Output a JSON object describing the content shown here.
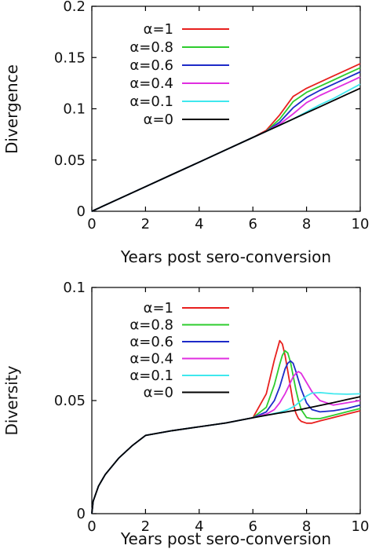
{
  "chart_data": [
    {
      "type": "line",
      "xlabel": "Years post sero-conversion",
      "ylabel": "Divergence",
      "xlim": [
        0,
        10
      ],
      "ylim": [
        0,
        0.2
      ],
      "xticks": [
        "0",
        "2",
        "4",
        "6",
        "8",
        "10"
      ],
      "yticks": [
        "0",
        "0.05",
        "0.1",
        "0.15",
        "0.2"
      ],
      "legend_position": "top-left",
      "grid": false,
      "x": [
        0,
        1,
        2,
        3,
        4,
        5,
        6,
        6.5,
        7,
        7.5,
        8,
        8.5,
        9,
        9.5,
        10
      ],
      "series": [
        {
          "name": "α=1",
          "color": "#e8201e",
          "values": [
            0,
            0.012,
            0.024,
            0.036,
            0.048,
            0.06,
            0.072,
            0.079,
            0.094,
            0.112,
            0.12,
            0.126,
            0.132,
            0.138,
            0.144
          ]
        },
        {
          "name": "α=0.8",
          "color": "#2ecc2e",
          "values": [
            0,
            0.012,
            0.024,
            0.036,
            0.048,
            0.06,
            0.072,
            0.078,
            0.09,
            0.107,
            0.116,
            0.122,
            0.128,
            0.134,
            0.14
          ]
        },
        {
          "name": "α=0.6",
          "color": "#1d2ac8",
          "values": [
            0,
            0.012,
            0.024,
            0.036,
            0.048,
            0.06,
            0.072,
            0.078,
            0.087,
            0.101,
            0.111,
            0.118,
            0.124,
            0.13,
            0.136
          ]
        },
        {
          "name": "α=0.4",
          "color": "#e02ee0",
          "values": [
            0,
            0.012,
            0.024,
            0.036,
            0.048,
            0.06,
            0.072,
            0.078,
            0.085,
            0.095,
            0.106,
            0.113,
            0.119,
            0.125,
            0.131
          ]
        },
        {
          "name": "α=0.1",
          "color": "#3fe8ee",
          "values": [
            0,
            0.012,
            0.024,
            0.036,
            0.048,
            0.06,
            0.072,
            0.078,
            0.084,
            0.09,
            0.097,
            0.104,
            0.11,
            0.117,
            0.124
          ]
        },
        {
          "name": "α=0",
          "color": "#000000",
          "values": [
            0,
            0.012,
            0.024,
            0.036,
            0.048,
            0.06,
            0.072,
            0.078,
            0.084,
            0.09,
            0.096,
            0.102,
            0.108,
            0.114,
            0.12
          ]
        }
      ]
    },
    {
      "type": "line",
      "xlabel": "Years post sero-conversion",
      "ylabel": "Diversity",
      "xlim": [
        0,
        10
      ],
      "ylim": [
        0,
        0.1
      ],
      "xticks": [
        "0",
        "2",
        "4",
        "6",
        "8",
        "10"
      ],
      "yticks": [
        "0",
        "0.05",
        "0.1"
      ],
      "legend_position": "top-left",
      "grid": false,
      "x": [
        0,
        0.05,
        0.25,
        0.5,
        1,
        1.5,
        2,
        3,
        4,
        5,
        6,
        6.5,
        6.8,
        7.0,
        7.1,
        7.2,
        7.3,
        7.4,
        7.5,
        7.6,
        7.7,
        7.8,
        8.0,
        8.2,
        8.5,
        9.0,
        9.5,
        10
      ],
      "series": [
        {
          "name": "α=1",
          "color": "#e8201e",
          "values": [
            0,
            0.0055,
            0.0122,
            0.0173,
            0.0245,
            0.03,
            0.0346,
            0.0367,
            0.0384,
            0.0401,
            0.0424,
            0.053,
            0.068,
            0.0765,
            0.075,
            0.07,
            0.063,
            0.056,
            0.049,
            0.0445,
            0.042,
            0.0408,
            0.04,
            0.04,
            0.041,
            0.0425,
            0.044,
            0.0455
          ]
        },
        {
          "name": "α=0.8",
          "color": "#2ecc2e",
          "values": [
            0,
            0.0055,
            0.0122,
            0.0173,
            0.0245,
            0.03,
            0.0346,
            0.0367,
            0.0384,
            0.0401,
            0.0424,
            0.047,
            0.057,
            0.066,
            0.07,
            0.072,
            0.071,
            0.067,
            0.061,
            0.055,
            0.05,
            0.046,
            0.0425,
            0.042,
            0.042,
            0.0435,
            0.045,
            0.0465
          ]
        },
        {
          "name": "α=0.6",
          "color": "#1d2ac8",
          "values": [
            0,
            0.0055,
            0.0122,
            0.0173,
            0.0245,
            0.03,
            0.0346,
            0.0367,
            0.0384,
            0.0401,
            0.0424,
            0.045,
            0.05,
            0.056,
            0.06,
            0.064,
            0.0665,
            0.0675,
            0.0665,
            0.063,
            0.059,
            0.055,
            0.049,
            0.046,
            0.045,
            0.0455,
            0.0465,
            0.048
          ]
        },
        {
          "name": "α=0.4",
          "color": "#e02ee0",
          "values": [
            0,
            0.0055,
            0.0122,
            0.0173,
            0.0245,
            0.03,
            0.0346,
            0.0367,
            0.0384,
            0.0401,
            0.0424,
            0.044,
            0.046,
            0.049,
            0.051,
            0.053,
            0.0555,
            0.058,
            0.0605,
            0.062,
            0.0628,
            0.062,
            0.058,
            0.054,
            0.05,
            0.048,
            0.049,
            0.05
          ]
        },
        {
          "name": "α=0.1",
          "color": "#3fe8ee",
          "values": [
            0,
            0.0055,
            0.0122,
            0.0173,
            0.0245,
            0.03,
            0.0346,
            0.0367,
            0.0384,
            0.0401,
            0.0424,
            0.0435,
            0.0443,
            0.0448,
            0.0452,
            0.0456,
            0.046,
            0.0466,
            0.0472,
            0.048,
            0.049,
            0.05,
            0.052,
            0.0533,
            0.0535,
            0.053,
            0.0528,
            0.053
          ]
        },
        {
          "name": "α=0",
          "color": "#000000",
          "values": [
            0,
            0.0055,
            0.0122,
            0.0173,
            0.0245,
            0.03,
            0.0346,
            0.0367,
            0.0384,
            0.0401,
            0.0424,
            0.0435,
            0.0441,
            0.0445,
            0.0447,
            0.0449,
            0.0451,
            0.0453,
            0.0455,
            0.0457,
            0.0459,
            0.0461,
            0.0466,
            0.0471,
            0.0478,
            0.0491,
            0.0504,
            0.0517
          ]
        }
      ]
    }
  ]
}
